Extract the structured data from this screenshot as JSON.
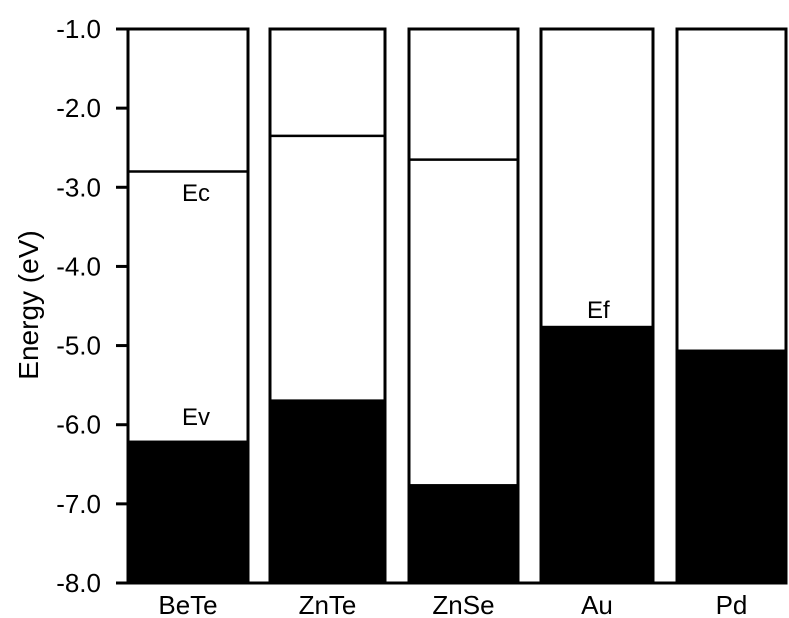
{
  "chart_data": {
    "type": "bar",
    "title": "",
    "xlabel": "",
    "ylabel": "Energy (eV)",
    "ylim": [
      -8.0,
      -1.0
    ],
    "yticks": [
      "-1.0",
      "-2.0",
      "-3.0",
      "-4.0",
      "-5.0",
      "-6.0",
      "-7.0",
      "-8.0"
    ],
    "grid": false,
    "categories": [
      "BeTe",
      "ZnTe",
      "ZnSe",
      "Au",
      "Pd"
    ],
    "series": [
      {
        "kind": "semiconductor",
        "categories": [
          "BeTe",
          "ZnTe",
          "ZnSe"
        ],
        "conduction_band_Ec": [
          -2.8,
          -2.35,
          -2.65
        ],
        "valence_band_Ev": [
          -6.2,
          -5.68,
          -6.75
        ]
      },
      {
        "kind": "metal",
        "categories": [
          "Au",
          "Pd"
        ],
        "fermi_level_Ef": [
          -4.75,
          -5.05
        ]
      }
    ],
    "annotations": [
      "Ec",
      "Ev",
      "Ef"
    ],
    "colors": {
      "filled": "#000000",
      "background": "#ffffff",
      "gap_fill": "#ffffff"
    }
  }
}
